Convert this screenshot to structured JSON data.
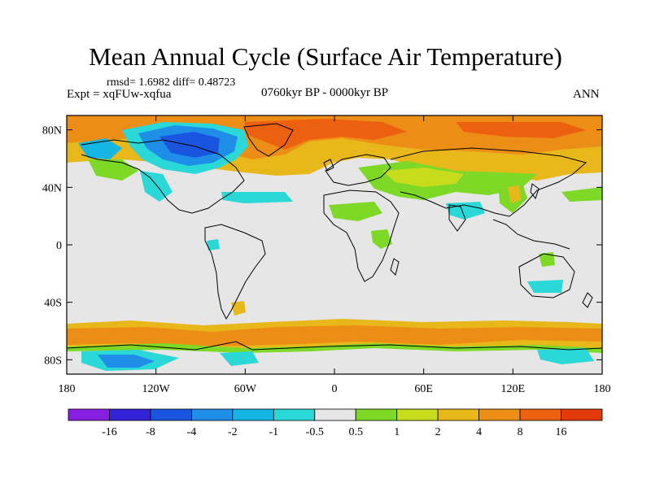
{
  "title": "Mean Annual Cycle (Surface Air Temperature)",
  "stats": "rmsd= 1.6982  diff= 0.48723",
  "experiment": "Expt = xqFUw-xqfua",
  "period": "0760kyr BP - 0000kyr BP",
  "season": "ANN",
  "axes": {
    "lat_labels": [
      "80N",
      "40N",
      "0",
      "40S",
      "80S"
    ],
    "lat_values": [
      80,
      40,
      0,
      -40,
      -80
    ],
    "lon_labels": [
      "180",
      "120W",
      "60W",
      "0",
      "60E",
      "120E",
      "180"
    ],
    "lon_values": [
      -180,
      -120,
      -60,
      0,
      60,
      120,
      180
    ]
  },
  "colorbar": {
    "colors": [
      "#8a1ee0",
      "#3323d6",
      "#1a55e0",
      "#1f8ee8",
      "#14b6e4",
      "#2ad8d8",
      "#e6e6e6",
      "#7dd926",
      "#c8dc1e",
      "#e8b81a",
      "#ec8e16",
      "#ec6010",
      "#e33a0b"
    ],
    "labels": [
      "-16",
      "-8",
      "-4",
      "-2",
      "-1",
      "-0.5",
      "0.5",
      "1",
      "2",
      "4",
      "8",
      "16"
    ]
  },
  "palette": {
    "neutral": "#e6e6e6",
    "green": "#7dd926",
    "yellow": "#c8dc1e",
    "light_orange": "#e8b81a",
    "orange": "#ec8e16",
    "dark_orange": "#ec6010",
    "cyan": "#2ad8d8",
    "light_blue": "#14b6e4",
    "blue": "#1f8ee8",
    "dark_blue": "#1a55e0"
  }
}
